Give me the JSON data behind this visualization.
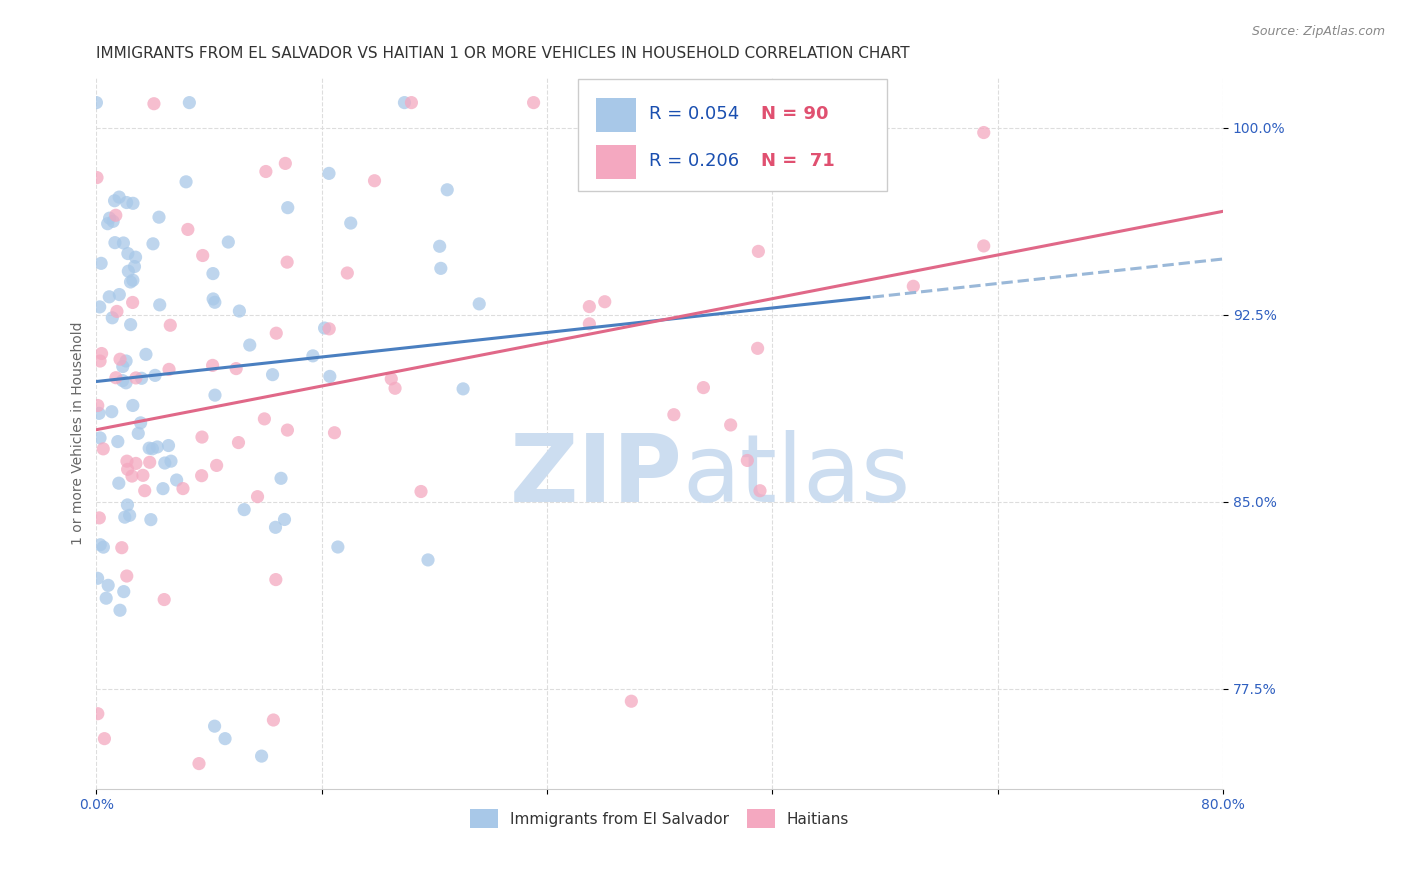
{
  "title": "IMMIGRANTS FROM EL SALVADOR VS HAITIAN 1 OR MORE VEHICLES IN HOUSEHOLD CORRELATION CHART",
  "source": "Source: ZipAtlas.com",
  "ylabel": "1 or more Vehicles in Household",
  "R_salvador": 0.054,
  "N_salvador": 90,
  "R_haitian": 0.206,
  "N_haitian": 71,
  "color_salvador": "#a8c8e8",
  "color_haitian": "#f4a8c0",
  "color_trend_salvador": "#4a7fc0",
  "color_trend_haitian": "#e06888",
  "color_trend_dashed": "#9ab8d8",
  "color_legend_text_R": "#1a4fb0",
  "color_legend_text_N": "#e05070",
  "color_axis_ticks": "#3060c0",
  "watermark_zip": "ZIP",
  "watermark_atlas": "atlas",
  "watermark_color": "#ccddf0",
  "xmin": 0.0,
  "xmax": 80.0,
  "ymin": 73.5,
  "ymax": 102.0,
  "x_tick_positions": [
    0,
    16,
    32,
    48,
    64,
    80
  ],
  "x_tick_labels": [
    "0.0%",
    "",
    "",
    "",
    "",
    "80.0%"
  ],
  "y_tick_vals": [
    77.5,
    85.0,
    92.5,
    100.0
  ],
  "y_tick_labels": [
    "77.5%",
    "85.0%",
    "92.5%",
    "100.0%"
  ],
  "title_fontsize": 11,
  "source_fontsize": 9,
  "tick_fontsize": 10,
  "legend_fontsize": 13,
  "ylabel_fontsize": 10,
  "scatter_size": 90,
  "scatter_alpha": 0.75,
  "trend_lw": 2.2
}
